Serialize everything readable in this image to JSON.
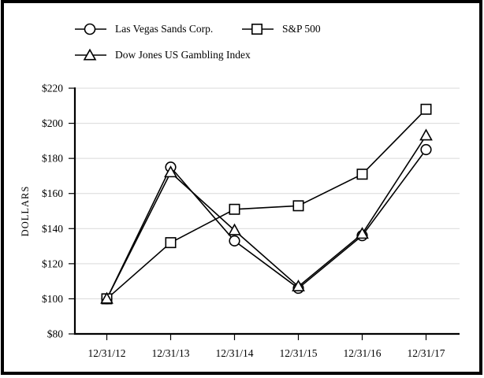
{
  "chart_data": {
    "type": "line",
    "title": "",
    "ylabel": "DOLLARS",
    "xlabel": "",
    "ylim": [
      80,
      220
    ],
    "grid": "horizontal-light",
    "legend_position": "top-left",
    "yticks": [
      {
        "value": 80,
        "label": "$80"
      },
      {
        "value": 100,
        "label": "$100"
      },
      {
        "value": 120,
        "label": "$120"
      },
      {
        "value": 140,
        "label": "$140"
      },
      {
        "value": 160,
        "label": "$160"
      },
      {
        "value": 180,
        "label": "$180"
      },
      {
        "value": 200,
        "label": "$200"
      },
      {
        "value": 220,
        "label": "$220"
      }
    ],
    "categories": [
      "12/31/12",
      "12/31/13",
      "12/31/14",
      "12/31/15",
      "12/31/16",
      "12/31/17"
    ],
    "series": [
      {
        "name": "Las Vegas Sands Corp.",
        "marker": "circle",
        "values": [
          100,
          175,
          133,
          106,
          136,
          185
        ]
      },
      {
        "name": "S&P 500",
        "marker": "square",
        "values": [
          100,
          132,
          151,
          153,
          171,
          208
        ]
      },
      {
        "name": "Dow Jones US Gambling Index",
        "marker": "triangle",
        "values": [
          100,
          172,
          139,
          107,
          137,
          193
        ]
      }
    ],
    "colors": {
      "line": "#000000",
      "grid": "#d9d9d9",
      "marker_fill": "#ffffff",
      "background": "#ffffff",
      "frame_border": "#000000"
    }
  }
}
